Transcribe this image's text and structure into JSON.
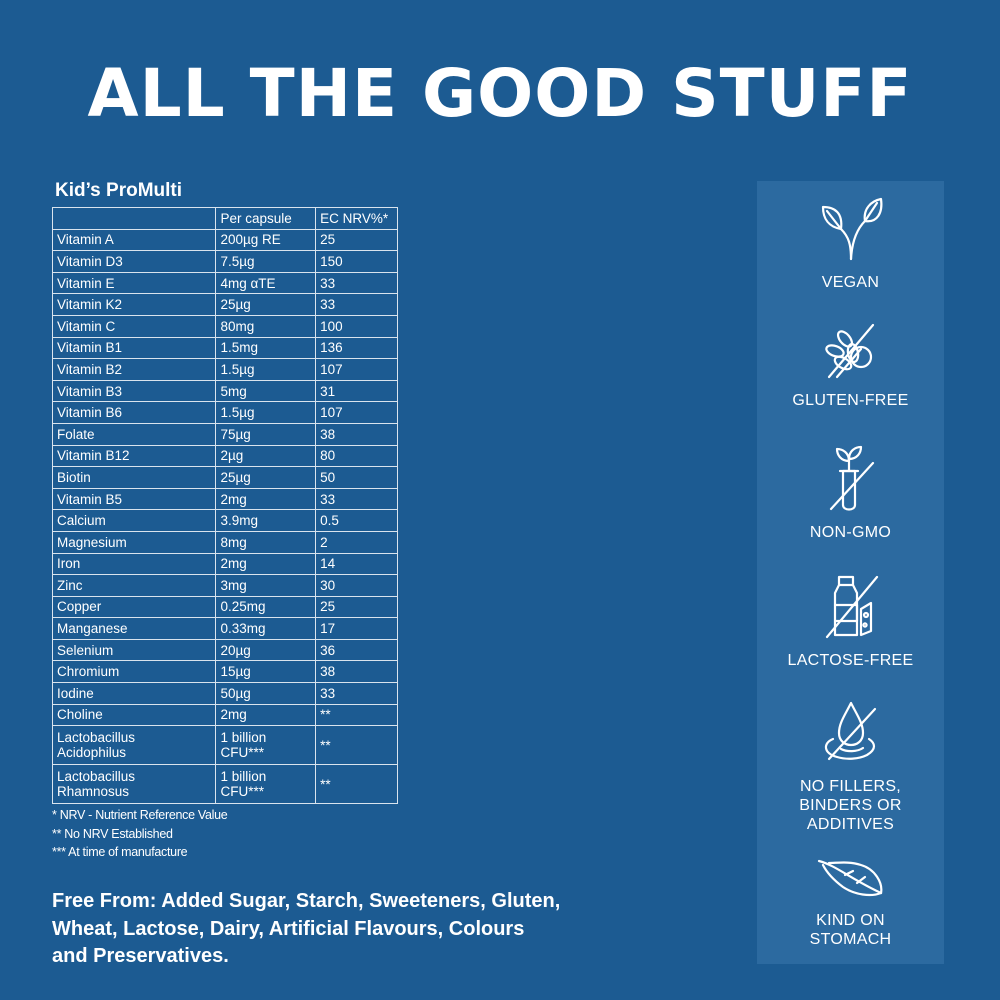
{
  "headline": "ALL THE GOOD STUFF",
  "product": {
    "title": "Kid’s ProMulti",
    "table": {
      "headers": [
        "",
        "Per capsule",
        "EC NRV%*"
      ],
      "rows": [
        {
          "name": "Vitamin A",
          "amount": "200µg RE",
          "nrv": "25"
        },
        {
          "name": "Vitamin D3",
          "amount": "7.5µg",
          "nrv": "150"
        },
        {
          "name": "Vitamin E",
          "amount": "4mg αTE",
          "nrv": "33"
        },
        {
          "name": "Vitamin K2",
          "amount": "25µg",
          "nrv": "33"
        },
        {
          "name": "Vitamin C",
          "amount": "80mg",
          "nrv": "100"
        },
        {
          "name": "Vitamin B1",
          "amount": "1.5mg",
          "nrv": "136"
        },
        {
          "name": "Vitamin B2",
          "amount": "1.5µg",
          "nrv": "107"
        },
        {
          "name": "Vitamin B3",
          "amount": "5mg",
          "nrv": "31"
        },
        {
          "name": "Vitamin B6",
          "amount": "1.5µg",
          "nrv": "107"
        },
        {
          "name": "Folate",
          "amount": "75µg",
          "nrv": "38"
        },
        {
          "name": "Vitamin B12",
          "amount": "2µg",
          "nrv": "80"
        },
        {
          "name": "Biotin",
          "amount": "25µg",
          "nrv": "50"
        },
        {
          "name": "Vitamin B5",
          "amount": "2mg",
          "nrv": "33"
        },
        {
          "name": "Calcium",
          "amount": "3.9mg",
          "nrv": "0.5"
        },
        {
          "name": "Magnesium",
          "amount": "8mg",
          "nrv": "2"
        },
        {
          "name": "Iron",
          "amount": "2mg",
          "nrv": "14"
        },
        {
          "name": "Zinc",
          "amount": "3mg",
          "nrv": "30"
        },
        {
          "name": "Copper",
          "amount": "0.25mg",
          "nrv": "25"
        },
        {
          "name": "Manganese",
          "amount": "0.33mg",
          "nrv": "17"
        },
        {
          "name": "Selenium",
          "amount": "20µg",
          "nrv": "36"
        },
        {
          "name": "Chromium",
          "amount": "15µg",
          "nrv": "38"
        },
        {
          "name": "Iodine",
          "amount": "50µg",
          "nrv": "33"
        },
        {
          "name": "Choline",
          "amount": "2mg",
          "nrv": "**"
        },
        {
          "name_line1": "Lactobacillus",
          "name_line2": "Acidophilus",
          "amount_line1": "1 billion",
          "amount_line2": "CFU***",
          "nrv": "**"
        },
        {
          "name_line1": "Lactobacillus",
          "name_line2": "Rhamnosus",
          "amount_line1": "1 billion",
          "amount_line2": "CFU***",
          "nrv": "**"
        }
      ]
    },
    "footnotes": [
      "* NRV - Nutrient Reference Value",
      "** No NRV Established",
      "*** At time of manufacture"
    ]
  },
  "free_from": {
    "line1": "Free From: Added Sugar, Starch, Sweeteners, Gluten,",
    "line2": "Wheat, Lactose, Dairy, Artificial Flavours, Colours",
    "line3": "and Preservatives."
  },
  "badges": [
    {
      "icon": "leaf-icon",
      "label_line1": "VEGAN",
      "label_line2": "",
      "label_line3": ""
    },
    {
      "icon": "wheat-crossed-icon",
      "label_line1": "GLUTEN-FREE",
      "label_line2": "",
      "label_line3": ""
    },
    {
      "icon": "test-tube-plant-crossed-icon",
      "label_line1": "NON-GMO",
      "label_line2": "",
      "label_line3": ""
    },
    {
      "icon": "milk-bottle-cheese-crossed-icon",
      "label_line1": "LACTOSE-FREE",
      "label_line2": "",
      "label_line3": ""
    },
    {
      "icon": "droplet-crossed-icon",
      "label_line1": "NO FILLERS,",
      "label_line2": "BINDERS OR",
      "label_line3": "ADDITIVES"
    },
    {
      "icon": "feather-icon",
      "label_line1": "KIND ON",
      "label_line2": "STOMACH",
      "label_line3": ""
    }
  ],
  "colors": {
    "background": "#1c5b92",
    "sidebar": "#2c6aa0",
    "text": "#ffffff"
  }
}
